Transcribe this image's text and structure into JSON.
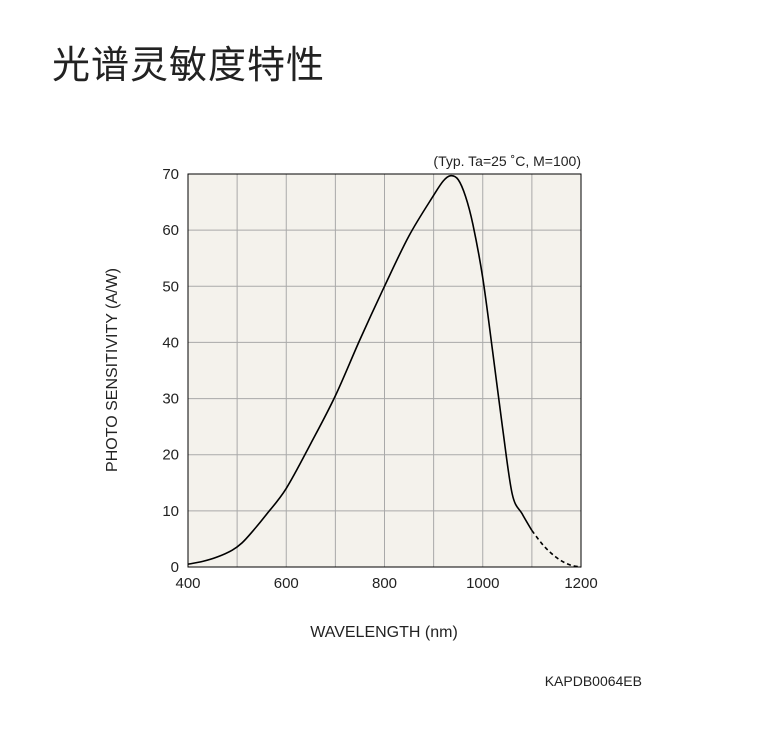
{
  "page": {
    "title": "光谱灵敏度特性"
  },
  "chart_data": {
    "type": "line",
    "title": "",
    "condition_note": "(Typ. Ta=25 ˚C, M=100)",
    "xlabel": "WAVELENGTH (nm)",
    "ylabel": "PHOTO SENSITIVITY (A/W)",
    "xlim": [
      400,
      1200
    ],
    "ylim": [
      0,
      70
    ],
    "xticks": [
      400,
      600,
      800,
      1000,
      1200
    ],
    "yticks": [
      0,
      10,
      20,
      30,
      40,
      50,
      60,
      70
    ],
    "grid": true,
    "background": "#f4f2ec",
    "line_color": "#000000",
    "series": [
      {
        "style": "solid",
        "x": [
          400,
          430,
          460,
          490,
          510,
          530,
          560,
          600,
          650,
          700,
          750,
          800,
          850,
          900,
          920,
          935,
          950,
          965,
          980,
          1000,
          1020,
          1040,
          1060,
          1080,
          1100
        ],
        "y": [
          0.5,
          1.0,
          1.8,
          3.0,
          4.3,
          6.2,
          9.4,
          14.0,
          22.0,
          30.5,
          40.5,
          50.0,
          59.0,
          66.2,
          68.8,
          69.7,
          69.0,
          66.0,
          61.0,
          51.5,
          38.5,
          25.0,
          13.0,
          9.5,
          6.5
        ]
      },
      {
        "style": "dashed",
        "x": [
          1100,
          1120,
          1140,
          1160,
          1180,
          1200
        ],
        "y": [
          6.5,
          4.2,
          2.4,
          1.1,
          0.3,
          0.0
        ]
      }
    ]
  },
  "footer": {
    "code": "KAPDB0064EB"
  }
}
